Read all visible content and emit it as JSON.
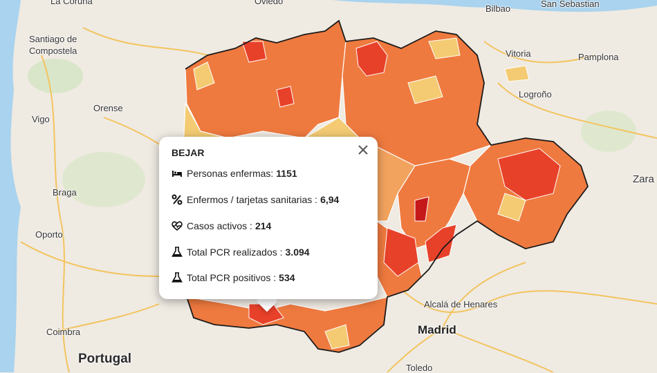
{
  "map": {
    "cities": [
      {
        "id": "bilbao",
        "label": "Bilbao"
      },
      {
        "id": "san-sebastian",
        "label": "San Sebastian"
      },
      {
        "id": "vitoria",
        "label": "Vitoria"
      },
      {
        "id": "pamplona",
        "label": "Pamplona"
      },
      {
        "id": "logrono",
        "label": "Logroño"
      },
      {
        "id": "santiago",
        "label": "Santiago de\nCompostela"
      },
      {
        "id": "orense",
        "label": "Orense"
      },
      {
        "id": "vigo",
        "label": "Vigo"
      },
      {
        "id": "braga",
        "label": "Braga"
      },
      {
        "id": "oporto",
        "label": "Oporto"
      },
      {
        "id": "coimbra",
        "label": "Coimbra"
      },
      {
        "id": "portugal",
        "label": "Portugal"
      },
      {
        "id": "alcala",
        "label": "Alcalá de Henares"
      },
      {
        "id": "madrid",
        "label": "Madrid"
      },
      {
        "id": "toledo",
        "label": "Toledo"
      },
      {
        "id": "zaragoza",
        "label": "Zara"
      },
      {
        "id": "oviedo",
        "label": "Oviedo"
      },
      {
        "id": "coruna",
        "label": "La Coruña"
      }
    ],
    "colors": {
      "land": "#efeae2",
      "sea": "#a9d3ee",
      "region_dark": "#e8412a",
      "region_mid": "#ef7a3f",
      "region_light": "#f2a35e",
      "region_pale": "#f4cb73"
    }
  },
  "popup": {
    "title": "BEJAR",
    "rows": [
      {
        "icon": "bed-icon",
        "label": "Personas enfermas:",
        "value": "1151"
      },
      {
        "icon": "percent-icon",
        "label": "Enfermos / tarjetas sanitarias :",
        "value": "6,94"
      },
      {
        "icon": "heartbeat-icon",
        "label": "Casos activos :",
        "value": "214"
      },
      {
        "icon": "flask-icon",
        "label": "Total PCR realizados :",
        "value": "3.094"
      },
      {
        "icon": "flask-icon",
        "label": "Total PCR positivos :",
        "value": "534"
      }
    ]
  }
}
